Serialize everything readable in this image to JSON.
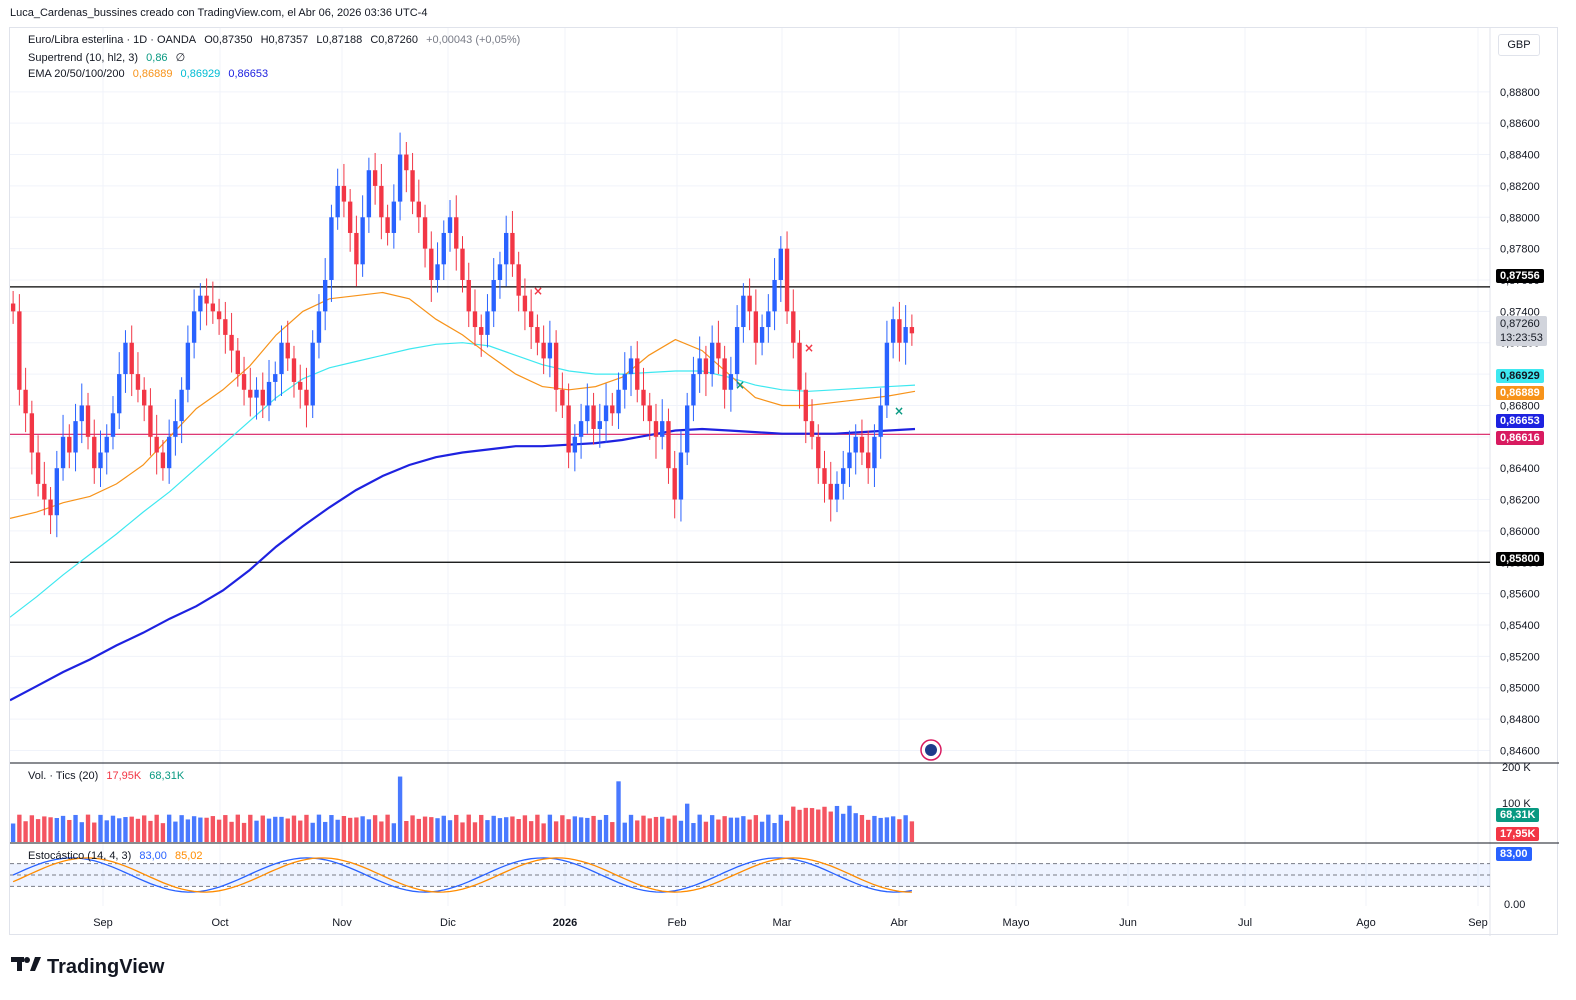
{
  "caption": "Luca_Cardenas_bussines creado con TradingView.com, el Abr 06, 2026 03:36 UTC-4",
  "brand": "TradingView",
  "currency": "GBP",
  "legend": {
    "symbol": "Euro/Libra esterlina · 1D · OANDA",
    "o": "O0,87350",
    "h": "H0,87357",
    "l": "L0,87188",
    "c": "C0,87260",
    "change": "+0,00043 (+0,05%)",
    "supertrend": "Supertrend (10, hl2, 3)",
    "supertrend_val": "0,86",
    "supertrend_sym": "∅",
    "ema": "EMA 20/50/100/200",
    "ema20": "0,86889",
    "ema50": "0,86929",
    "ema100": "0,86653",
    "vol": "Vol. · Tics (20)",
    "vol_a": "17,95K",
    "vol_b": "68,31K",
    "stoch": "Estocástico (14, 4, 3)",
    "stoch_a": "83,00",
    "stoch_b": "85,02"
  },
  "colors": {
    "up": "#2962ff",
    "down": "#f23645",
    "ema20": "#f7931a",
    "ema50": "#3ee8f0",
    "ema200": "#1e22e0",
    "support": "#d81b60",
    "stochK": "#2962ff",
    "stochD": "#ff8c00"
  },
  "price_axis": {
    "ticks": [
      "0,88800",
      "0,88600",
      "0,88400",
      "0,88200",
      "0,88000",
      "0,87800",
      "0,87600",
      "0,87400",
      "0,87200",
      "0,87000",
      "0,86800",
      "0,86600",
      "0,86400",
      "0,86200",
      "0,86000",
      "0,85800",
      "0,85600",
      "0,85400",
      "0,85200",
      "0,85000",
      "0,84800",
      "0,84600"
    ]
  },
  "time_axis": [
    "Sep",
    "Oct",
    "Nov",
    "Dic",
    "2026",
    "Feb",
    "Mar",
    "Abr",
    "Mayo",
    "Jun",
    "Jul",
    "Ago",
    "Sep"
  ],
  "tags": {
    "resistance": "0,87556",
    "last": "0,87260",
    "countdown": "13:23:53",
    "ema50": "0,86929",
    "ema20": "0,86889",
    "ema200": "0,86653",
    "support": "0,86616",
    "level_low": "0,85800",
    "vol_max": "200 K",
    "vol_mid": "100 K",
    "vol_b": "68,31K",
    "vol_a": "17,95K",
    "stoch_val": "83,00",
    "stoch_zero": "0.00"
  },
  "chart_data": {
    "type": "candlestick",
    "title": "Euro/Libra esterlina · 1D · OANDA",
    "ylim": [
      0.8452,
      0.8892
    ],
    "horizontal_levels": [
      0.87556,
      0.858,
      0.86616
    ],
    "closes": [
      0.874,
      0.869,
      0.8675,
      0.865,
      0.863,
      0.862,
      0.861,
      0.864,
      0.866,
      0.865,
      0.867,
      0.868,
      0.866,
      0.864,
      0.865,
      0.866,
      0.8675,
      0.87,
      0.872,
      0.87,
      0.869,
      0.868,
      0.866,
      0.865,
      0.864,
      0.866,
      0.867,
      0.869,
      0.872,
      0.874,
      0.875,
      0.8745,
      0.874,
      0.8735,
      0.8725,
      0.8715,
      0.87,
      0.869,
      0.8685,
      0.869,
      0.868,
      0.8695,
      0.87,
      0.872,
      0.871,
      0.8695,
      0.869,
      0.868,
      0.872,
      0.874,
      0.876,
      0.88,
      0.882,
      0.881,
      0.879,
      0.877,
      0.88,
      0.883,
      0.882,
      0.88,
      0.879,
      0.881,
      0.884,
      0.883,
      0.881,
      0.88,
      0.878,
      0.876,
      0.877,
      0.879,
      0.88,
      0.878,
      0.876,
      0.874,
      0.873,
      0.8725,
      0.874,
      0.876,
      0.877,
      0.879,
      0.877,
      0.875,
      0.874,
      0.873,
      0.872,
      0.871,
      0.872,
      0.869,
      0.868,
      0.865,
      0.866,
      0.867,
      0.868,
      0.8665,
      0.867,
      0.868,
      0.8675,
      0.869,
      0.87,
      0.871,
      0.869,
      0.868,
      0.867,
      0.866,
      0.867,
      0.864,
      0.862,
      0.865,
      0.868,
      0.87,
      0.871,
      0.87,
      0.872,
      0.871,
      0.869,
      0.87,
      0.873,
      0.875,
      0.874,
      0.872,
      0.873,
      0.874,
      0.876,
      0.878,
      0.874,
      0.872,
      0.869,
      0.867,
      0.866,
      0.864,
      0.863,
      0.862,
      0.863,
      0.864,
      0.865,
      0.866,
      0.865,
      0.864,
      0.866,
      0.868,
      0.872,
      0.8735,
      0.872,
      0.873,
      0.8726
    ],
    "ema20": [
      0.8608,
      0.8612,
      0.8618,
      0.8622,
      0.863,
      0.8642,
      0.866,
      0.8678,
      0.869,
      0.8705,
      0.8725,
      0.874,
      0.8748,
      0.875,
      0.8752,
      0.8748,
      0.8735,
      0.8725,
      0.8712,
      0.87,
      0.8692,
      0.869,
      0.8692,
      0.8698,
      0.8712,
      0.8722,
      0.8715,
      0.87,
      0.8685,
      0.868,
      0.868,
      0.8682,
      0.8684,
      0.8686,
      0.8689
    ],
    "ema50": [
      0.8545,
      0.8558,
      0.8572,
      0.8585,
      0.8598,
      0.8612,
      0.8625,
      0.864,
      0.8655,
      0.867,
      0.8685,
      0.8697,
      0.8704,
      0.8708,
      0.8712,
      0.8716,
      0.8719,
      0.872,
      0.8718,
      0.8712,
      0.8706,
      0.8702,
      0.87,
      0.87,
      0.8701,
      0.8702,
      0.8702,
      0.8698,
      0.8693,
      0.869,
      0.8689,
      0.869,
      0.8691,
      0.8692,
      0.8693
    ],
    "ema200": [
      0.8492,
      0.8501,
      0.851,
      0.8518,
      0.8527,
      0.8535,
      0.8544,
      0.8552,
      0.8562,
      0.8575,
      0.859,
      0.8603,
      0.8615,
      0.8626,
      0.8635,
      0.8642,
      0.8647,
      0.865,
      0.8652,
      0.8654,
      0.8654,
      0.8655,
      0.8656,
      0.8658,
      0.8661,
      0.8664,
      0.8665,
      0.8664,
      0.8663,
      0.8662,
      0.8662,
      0.8662,
      0.8663,
      0.8664,
      0.8665
    ],
    "stoch_ylim": [
      0,
      100
    ]
  }
}
